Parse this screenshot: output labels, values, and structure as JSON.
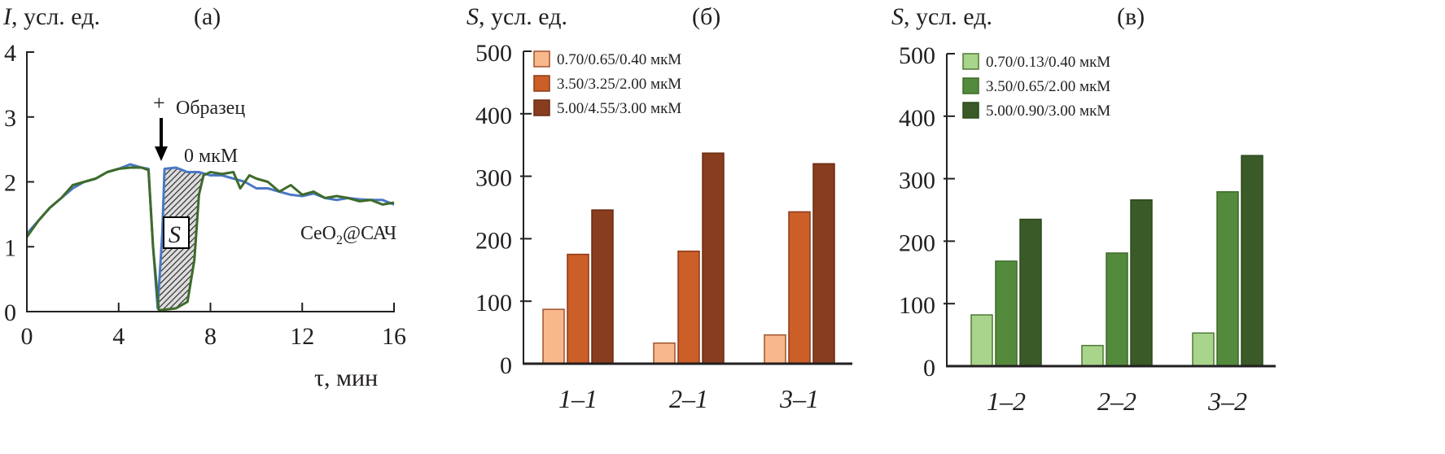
{
  "chart_data": [
    {
      "type": "line",
      "panel_label": "(а)",
      "ylabel_var": "I",
      "ylabel_unit": ", усл. ед.",
      "xlabel": "τ, мин",
      "xlim": [
        0,
        16
      ],
      "ylim": [
        0,
        4
      ],
      "xticks": [
        "0",
        "4",
        "8",
        "12",
        "16"
      ],
      "yticks": [
        "0",
        "1",
        "2",
        "3",
        "4"
      ],
      "annotations": {
        "plus": "+",
        "sample": "Образец",
        "conc": "0 мкМ",
        "area": "S",
        "probe_main": "CeO",
        "probe_sub": "2",
        "probe_rest": "@САЧ"
      },
      "series": [
        {
          "name": "blue",
          "color": "#4a78c4",
          "x": [
            0,
            0.5,
            1,
            1.5,
            2,
            2.5,
            3,
            3.5,
            4,
            4.5,
            5,
            5.3,
            5.5,
            5.7,
            5.9,
            6.0,
            6.5,
            7,
            7.5,
            8,
            8.5,
            9,
            9.5,
            10,
            10.5,
            11,
            11.5,
            12,
            12.5,
            13,
            13.5,
            14,
            14.5,
            15,
            15.5,
            16
          ],
          "y": [
            1.2,
            1.4,
            1.6,
            1.75,
            1.9,
            2.0,
            2.05,
            2.15,
            2.2,
            2.27,
            2.22,
            2.2,
            1.0,
            0.05,
            1.2,
            2.2,
            2.22,
            2.15,
            2.15,
            2.1,
            2.1,
            2.05,
            2.0,
            1.9,
            1.9,
            1.85,
            1.8,
            1.78,
            1.82,
            1.75,
            1.72,
            1.75,
            1.73,
            1.72,
            1.72,
            1.65
          ]
        },
        {
          "name": "green",
          "color": "#3e6b2a",
          "x": [
            0,
            0.5,
            1,
            1.5,
            2,
            2.5,
            3,
            3.5,
            4,
            4.5,
            5,
            5.3,
            5.5,
            5.75,
            6,
            6.5,
            7,
            7.3,
            7.5,
            7.7,
            8,
            8.5,
            9,
            9.3,
            9.7,
            10,
            10.5,
            11,
            11.5,
            12,
            12.5,
            13,
            13.5,
            14,
            14.5,
            15,
            15.5,
            16
          ],
          "y": [
            1.15,
            1.4,
            1.6,
            1.75,
            1.95,
            2.0,
            2.05,
            2.15,
            2.2,
            2.22,
            2.22,
            2.18,
            1.0,
            0.02,
            0.03,
            0.05,
            0.15,
            0.8,
            1.8,
            2.1,
            2.15,
            2.12,
            2.15,
            1.9,
            2.1,
            2.05,
            2.0,
            1.85,
            1.95,
            1.8,
            1.85,
            1.75,
            1.78,
            1.75,
            1.7,
            1.72,
            1.65,
            1.68
          ]
        }
      ],
      "shaded_region_x": [
        5.7,
        7.7
      ]
    },
    {
      "type": "bar",
      "panel_label": "(б)",
      "ylabel_var": "S",
      "ylabel_unit": ", усл. ед.",
      "ylim": [
        0,
        500
      ],
      "yticks": [
        "0",
        "100",
        "200",
        "300",
        "400",
        "500"
      ],
      "categories": [
        "1–1",
        "2–1",
        "3–1"
      ],
      "legend_placement": "top-left",
      "series": [
        {
          "name": "0.70/0.65/0.40 мкМ",
          "color": "#f8b88b",
          "edge": "#a0522d",
          "values": [
            87,
            33,
            46
          ]
        },
        {
          "name": "3.50/3.25/2.00 мкМ",
          "color": "#cc5e28",
          "edge": "#8b3a18",
          "values": [
            175,
            180,
            243
          ]
        },
        {
          "name": "5.00/4.55/3.00 мкМ",
          "color": "#873d1e",
          "edge": "#6b2c12",
          "values": [
            246,
            337,
            320
          ]
        }
      ]
    },
    {
      "type": "bar",
      "panel_label": "(в)",
      "ylabel_var": "S",
      "ylabel_unit": ", усл. ед.",
      "ylim": [
        0,
        500
      ],
      "yticks": [
        "0",
        "100",
        "200",
        "300",
        "400",
        "500"
      ],
      "categories": [
        "1–2",
        "2–2",
        "3–2"
      ],
      "legend_placement": "top-left",
      "series": [
        {
          "name": "0.70/0.13/0.40 мкМ",
          "color": "#a9d48c",
          "edge": "#4e7a34",
          "values": [
            82,
            33,
            53
          ]
        },
        {
          "name": "3.50/0.65/2.00 мкМ",
          "color": "#548a3c",
          "edge": "#3d6b2a",
          "values": [
            168,
            181,
            279
          ]
        },
        {
          "name": "5.00/0.90/3.00 мкМ",
          "color": "#3a5a28",
          "edge": "#2b4a1e",
          "values": [
            235,
            266,
            337
          ]
        }
      ]
    }
  ]
}
